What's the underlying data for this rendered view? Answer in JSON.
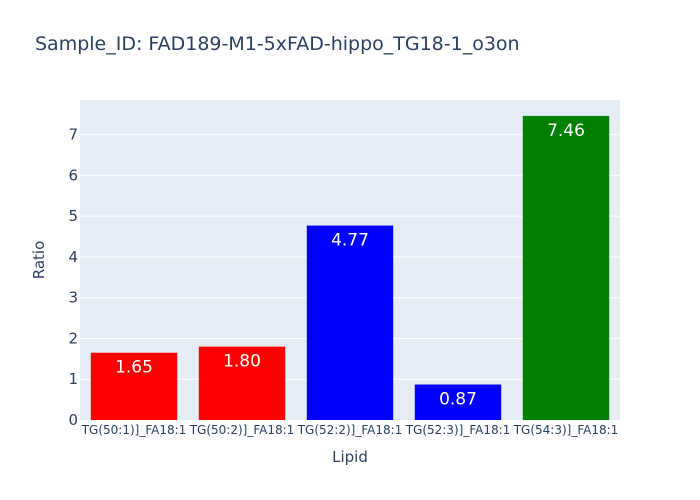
{
  "chart_data": {
    "type": "bar",
    "title": "Sample_ID: FAD189-M1-5xFAD-hippo_TG18-1_o3on",
    "xlabel": "Lipid",
    "ylabel": "Ratio",
    "categories": [
      "TG(50:1)]_FA18:1",
      "TG(50:2)]_FA18:1",
      "TG(52:2)]_FA18:1",
      "TG(52:3)]_FA18:1",
      "TG(54:3)]_FA18:1"
    ],
    "values": [
      1.65,
      1.8,
      4.77,
      0.87,
      7.46
    ],
    "value_labels": [
      "1.65",
      "1.80",
      "4.77",
      "0.87",
      "7.46"
    ],
    "bar_colors": [
      "#ff0000",
      "#ff0000",
      "#0000ff",
      "#0000ff",
      "#008000"
    ],
    "yticks": [
      "0",
      "1",
      "2",
      "3",
      "4",
      "5",
      "6",
      "7"
    ],
    "ylim": [
      0,
      7.85
    ],
    "grid": true,
    "plot_background": "#e5ecf6",
    "gridline_color": "#ffffff",
    "text_color": "#2a3f5f"
  }
}
